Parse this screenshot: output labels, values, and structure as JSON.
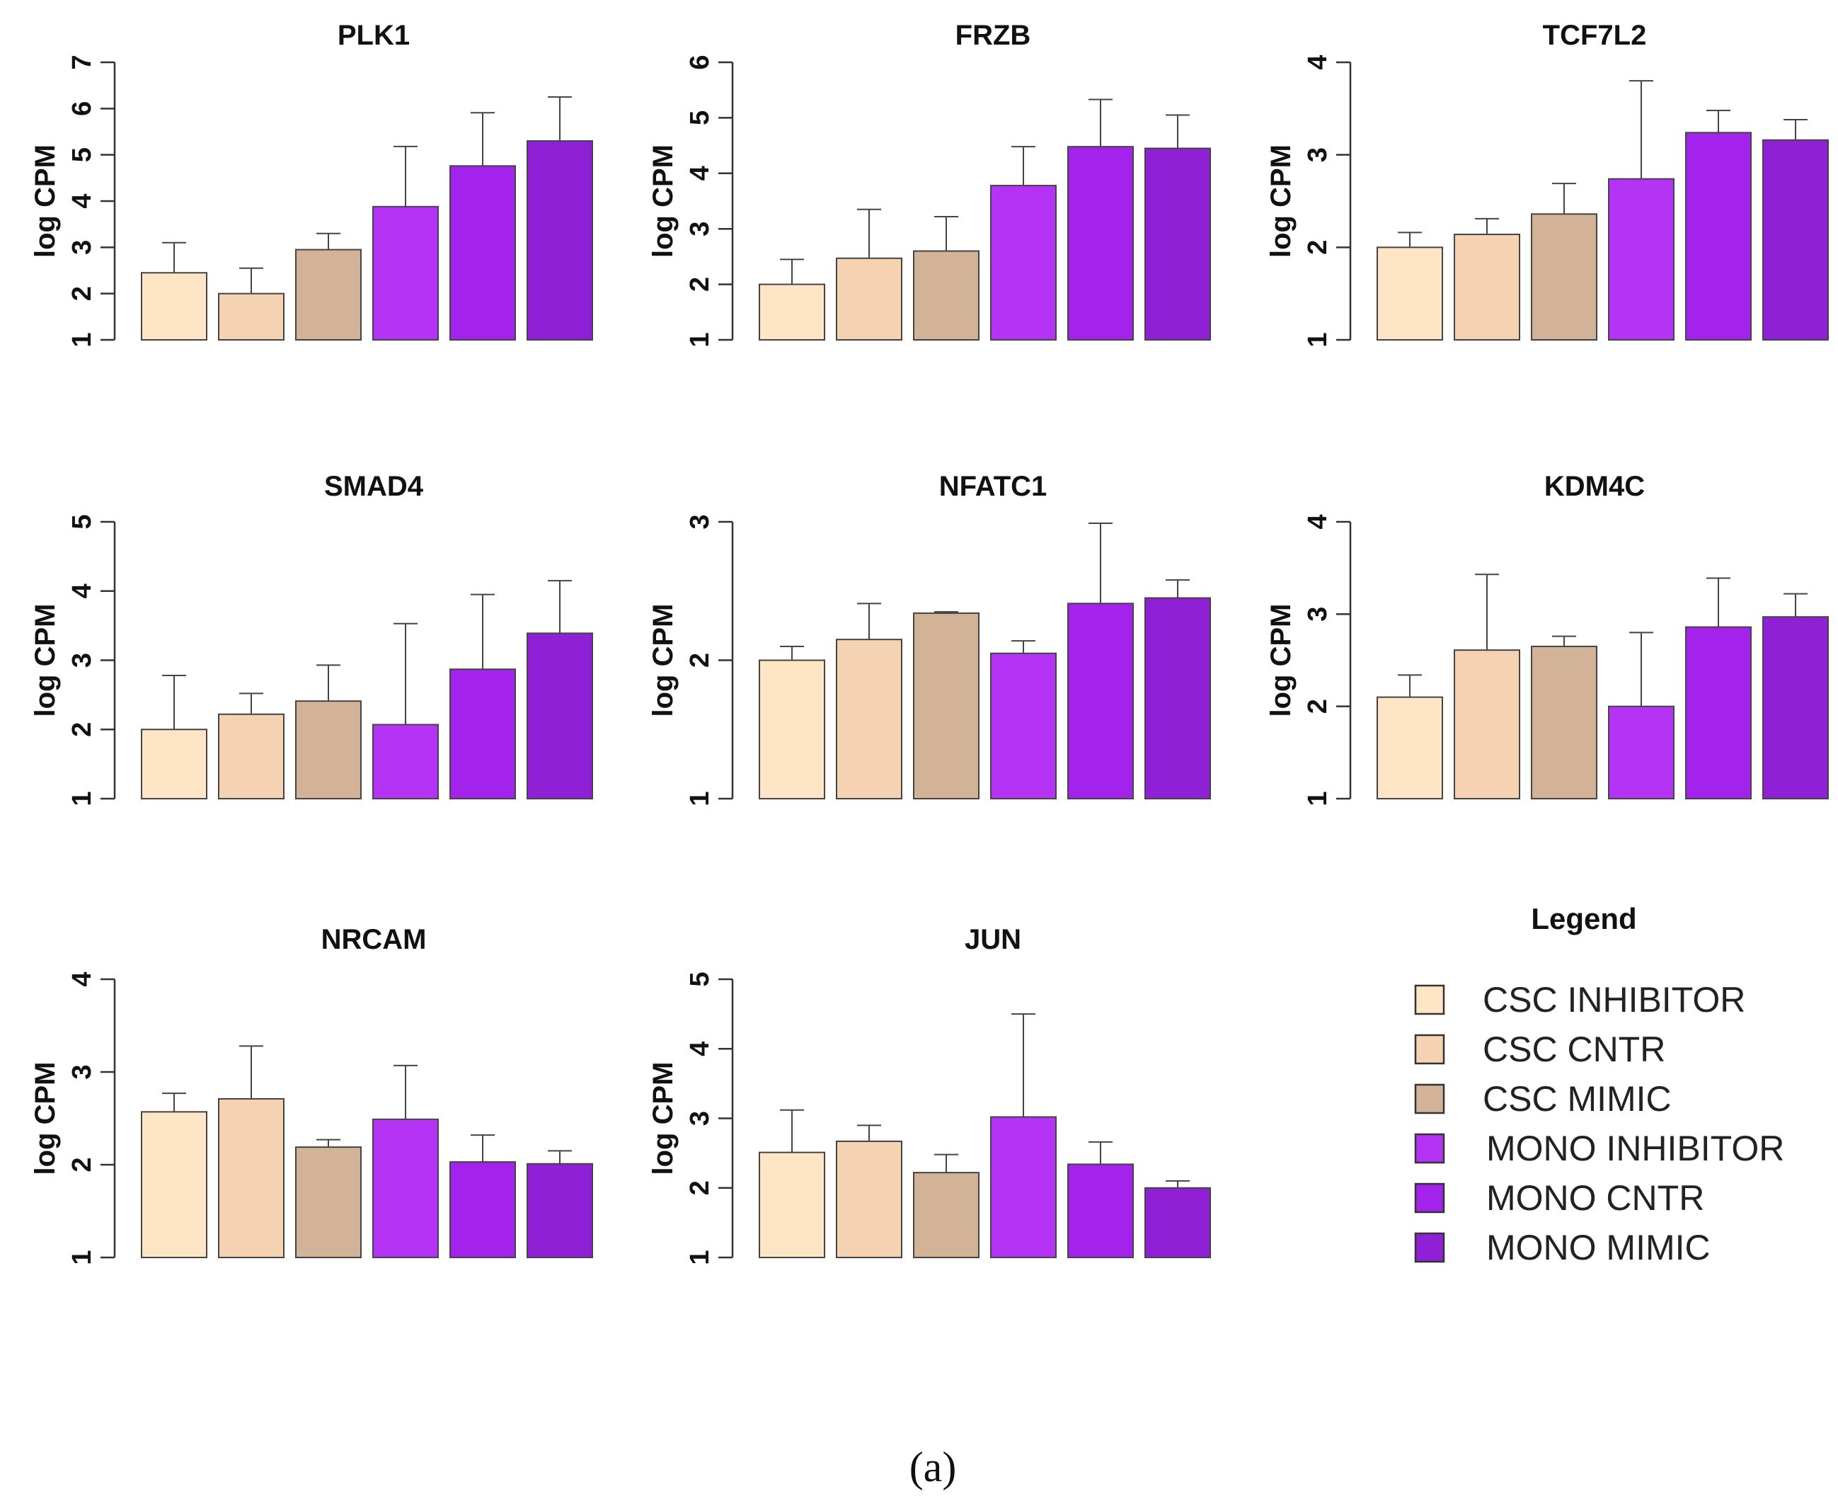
{
  "chart_data": {
    "type": "bar",
    "ylabel": "log CPM",
    "caption": "(a)",
    "legend": {
      "title": "Legend",
      "placement": "bottom-right",
      "entries": [
        "CSC INHIBITOR",
        "CSC CNTR",
        "CSC MIMIC",
        "MONO INHIBITOR",
        "MONO CNTR",
        "MONO MIMIC"
      ]
    },
    "group_colors": [
      "#fde5c6",
      "#f4d2b2",
      "#d3b397",
      "#b433f5",
      "#a322ec",
      "#8f20d6"
    ],
    "categories": [
      "CSC INHIBITOR",
      "CSC CNTR",
      "CSC MIMIC",
      "MONO INHIBITOR",
      "MONO CNTR",
      "MONO MIMIC"
    ],
    "panels": [
      {
        "title": "PLK1",
        "ylim": [
          1,
          7
        ],
        "yticks": [
          "1",
          "2",
          "3",
          "4",
          "5",
          "6",
          "7"
        ],
        "values": [
          2.45,
          2.0,
          2.95,
          3.88,
          4.76,
          5.3
        ],
        "errors": [
          0.65,
          0.55,
          0.35,
          1.3,
          1.15,
          0.95
        ]
      },
      {
        "title": "FRZB",
        "ylim": [
          1,
          6
        ],
        "yticks": [
          "1",
          "2",
          "3",
          "4",
          "5",
          "6"
        ],
        "values": [
          2.0,
          2.47,
          2.6,
          3.78,
          4.48,
          4.45
        ],
        "errors": [
          0.45,
          0.88,
          0.62,
          0.7,
          0.85,
          0.6
        ]
      },
      {
        "title": "TCF7L2",
        "ylim": [
          1,
          4
        ],
        "yticks": [
          "1",
          "2",
          "3",
          "4"
        ],
        "values": [
          2.0,
          2.14,
          2.36,
          2.74,
          3.24,
          3.16
        ],
        "errors": [
          0.16,
          0.17,
          0.33,
          1.06,
          0.24,
          0.22
        ]
      },
      {
        "title": "SMAD4",
        "ylim": [
          1,
          5
        ],
        "yticks": [
          "1",
          "2",
          "3",
          "4",
          "5"
        ],
        "values": [
          2.0,
          2.22,
          2.41,
          2.07,
          2.87,
          3.39
        ],
        "errors": [
          0.78,
          0.3,
          0.52,
          1.46,
          1.08,
          0.76
        ]
      },
      {
        "title": "NFATC1",
        "ylim": [
          1,
          3
        ],
        "yticks": [
          "1",
          "2",
          "3"
        ],
        "values": [
          2.0,
          2.15,
          2.34,
          2.05,
          2.41,
          2.45
        ],
        "errors": [
          0.1,
          0.26,
          0.01,
          0.09,
          0.58,
          0.13
        ]
      },
      {
        "title": "KDM4C",
        "ylim": [
          1,
          4
        ],
        "yticks": [
          "1",
          "2",
          "3",
          "4"
        ],
        "values": [
          2.1,
          2.61,
          2.65,
          2.0,
          2.86,
          2.97
        ],
        "errors": [
          0.24,
          0.82,
          0.11,
          0.8,
          0.53,
          0.25
        ]
      },
      {
        "title": "NRCAM",
        "ylim": [
          1,
          4
        ],
        "yticks": [
          "1",
          "2",
          "3",
          "4"
        ],
        "values": [
          2.57,
          2.71,
          2.19,
          2.49,
          2.03,
          2.01
        ],
        "errors": [
          0.2,
          0.57,
          0.08,
          0.58,
          0.29,
          0.14
        ]
      },
      {
        "title": "JUN",
        "ylim": [
          1,
          5
        ],
        "yticks": [
          "1",
          "2",
          "3",
          "4",
          "5"
        ],
        "values": [
          2.51,
          2.67,
          2.22,
          3.02,
          2.34,
          2.0
        ],
        "errors": [
          0.61,
          0.23,
          0.26,
          1.48,
          0.32,
          0.1
        ]
      }
    ]
  }
}
